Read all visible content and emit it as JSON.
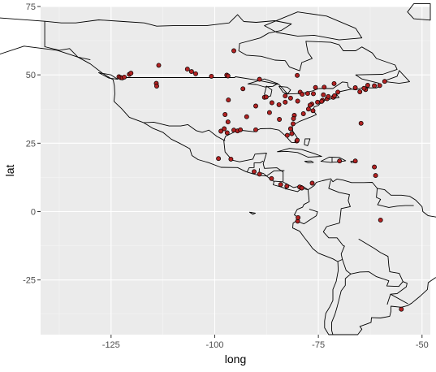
{
  "chart_data": {
    "type": "scatter",
    "title": "",
    "xlabel": "long",
    "ylabel": "lat",
    "xlim": [
      -142,
      -48
    ],
    "ylim": [
      -45,
      75
    ],
    "x_ticks": [
      -125,
      -100,
      -75,
      -50
    ],
    "y_ticks": [
      -25,
      0,
      25,
      50,
      75
    ],
    "grid": true,
    "legend": "none",
    "colors": {
      "panel": "#ebebeb",
      "grid_major": "#ffffff",
      "grid_minor": "#f5f5f5",
      "point_fill": "#b22222",
      "point_stroke": "#000000",
      "map_stroke": "#000000"
    },
    "basemap": "americas-country-outlines",
    "points": [
      {
        "x": -123.1,
        "y": 49.3
      },
      {
        "x": -122.7,
        "y": 49.0
      },
      {
        "x": -122.3,
        "y": 48.9
      },
      {
        "x": -121.8,
        "y": 49.2
      },
      {
        "x": -120.6,
        "y": 50.2
      },
      {
        "x": -120.2,
        "y": 50.6
      },
      {
        "x": -113.5,
        "y": 53.5
      },
      {
        "x": -114.1,
        "y": 46.9
      },
      {
        "x": -114.0,
        "y": 45.9
      },
      {
        "x": -106.6,
        "y": 52.1
      },
      {
        "x": -105.6,
        "y": 51.2
      },
      {
        "x": -104.6,
        "y": 50.4
      },
      {
        "x": -100.8,
        "y": 49.5
      },
      {
        "x": -97.1,
        "y": 49.9
      },
      {
        "x": -96.8,
        "y": 49.6
      },
      {
        "x": -89.2,
        "y": 48.4
      },
      {
        "x": -93.2,
        "y": 44.9
      },
      {
        "x": -96.7,
        "y": 40.8
      },
      {
        "x": -90.1,
        "y": 38.6
      },
      {
        "x": -88.0,
        "y": 41.8
      },
      {
        "x": -87.6,
        "y": 41.9
      },
      {
        "x": -86.2,
        "y": 39.8
      },
      {
        "x": -84.5,
        "y": 39.1
      },
      {
        "x": -83.0,
        "y": 40.0
      },
      {
        "x": -83.0,
        "y": 42.3
      },
      {
        "x": -81.7,
        "y": 41.5
      },
      {
        "x": -80.0,
        "y": 40.4
      },
      {
        "x": -79.4,
        "y": 43.7
      },
      {
        "x": -78.9,
        "y": 42.9
      },
      {
        "x": -77.6,
        "y": 43.2
      },
      {
        "x": -76.2,
        "y": 43.1
      },
      {
        "x": -75.7,
        "y": 45.4
      },
      {
        "x": -73.8,
        "y": 42.7
      },
      {
        "x": -73.6,
        "y": 45.5
      },
      {
        "x": -74.0,
        "y": 40.7
      },
      {
        "x": -74.2,
        "y": 40.3
      },
      {
        "x": -75.2,
        "y": 40.0
      },
      {
        "x": -76.6,
        "y": 39.3
      },
      {
        "x": -77.0,
        "y": 38.9
      },
      {
        "x": -77.4,
        "y": 37.5
      },
      {
        "x": -76.3,
        "y": 36.9
      },
      {
        "x": -78.6,
        "y": 35.8
      },
      {
        "x": -80.8,
        "y": 35.2
      },
      {
        "x": -84.4,
        "y": 33.7
      },
      {
        "x": -86.8,
        "y": 36.2
      },
      {
        "x": -81.0,
        "y": 34.0
      },
      {
        "x": -81.1,
        "y": 32.1
      },
      {
        "x": -81.7,
        "y": 30.3
      },
      {
        "x": -82.5,
        "y": 27.9
      },
      {
        "x": -81.4,
        "y": 28.5
      },
      {
        "x": -80.2,
        "y": 25.8
      },
      {
        "x": -80.1,
        "y": 26.1
      },
      {
        "x": -90.1,
        "y": 29.9
      },
      {
        "x": -95.4,
        "y": 29.8
      },
      {
        "x": -94.5,
        "y": 29.5
      },
      {
        "x": -93.8,
        "y": 29.9
      },
      {
        "x": -96.8,
        "y": 32.8
      },
      {
        "x": -97.5,
        "y": 35.5
      },
      {
        "x": -98.5,
        "y": 29.4
      },
      {
        "x": -97.7,
        "y": 30.3
      },
      {
        "x": -97.0,
        "y": 28.8
      },
      {
        "x": -92.3,
        "y": 34.7
      },
      {
        "x": -99.1,
        "y": 19.4
      },
      {
        "x": -96.1,
        "y": 19.2
      },
      {
        "x": -90.5,
        "y": 14.6
      },
      {
        "x": -89.2,
        "y": 13.7
      },
      {
        "x": -86.3,
        "y": 12.1
      },
      {
        "x": -84.1,
        "y": 9.9
      },
      {
        "x": -79.5,
        "y": 9.0
      },
      {
        "x": -76.5,
        "y": 10.4
      },
      {
        "x": -69.9,
        "y": 18.5
      },
      {
        "x": -66.1,
        "y": 18.5
      },
      {
        "x": -61.5,
        "y": 16.3
      },
      {
        "x": -61.2,
        "y": 13.2
      },
      {
        "x": -64.7,
        "y": 32.3
      },
      {
        "x": -63.6,
        "y": 44.6
      },
      {
        "x": -64.0,
        "y": 45.1
      },
      {
        "x": -65.0,
        "y": 43.8
      },
      {
        "x": -66.1,
        "y": 45.3
      },
      {
        "x": -63.1,
        "y": 46.2
      },
      {
        "x": -71.2,
        "y": 46.8
      },
      {
        "x": -71.4,
        "y": 41.8
      },
      {
        "x": -72.9,
        "y": 41.3
      },
      {
        "x": -70.3,
        "y": 43.7
      },
      {
        "x": -71.1,
        "y": 42.4
      },
      {
        "x": -72.6,
        "y": 42.1
      },
      {
        "x": -61.5,
        "y": 46.0
      },
      {
        "x": -60.2,
        "y": 46.1
      },
      {
        "x": -59.0,
        "y": 47.6
      },
      {
        "x": -80.1,
        "y": 49.8
      },
      {
        "x": -95.4,
        "y": 58.8
      },
      {
        "x": -60.0,
        "y": -3.1
      },
      {
        "x": -55.0,
        "y": -35.7
      },
      {
        "x": -80.0,
        "y": -3.5
      },
      {
        "x": -79.9,
        "y": -2.2
      },
      {
        "x": -79.0,
        "y": 8.6
      },
      {
        "x": -82.6,
        "y": 9.3
      }
    ]
  }
}
